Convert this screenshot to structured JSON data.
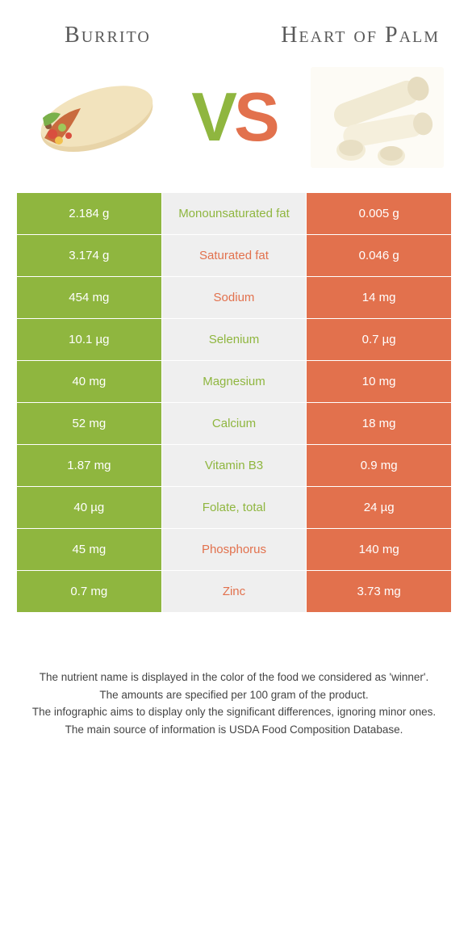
{
  "header": {
    "left_title": "Burrito",
    "right_title": "Heart of Palm",
    "vs_v": "V",
    "vs_s": "S"
  },
  "colors": {
    "green": "#8fb63f",
    "orange": "#e2714d",
    "mid_bg": "#efefef",
    "page_bg": "#ffffff",
    "text": "#333333"
  },
  "table": {
    "rows": [
      {
        "left": "2.184 g",
        "label": "Monounsaturated fat",
        "right": "0.005 g",
        "winner": "green"
      },
      {
        "left": "3.174 g",
        "label": "Saturated fat",
        "right": "0.046 g",
        "winner": "orange"
      },
      {
        "left": "454 mg",
        "label": "Sodium",
        "right": "14 mg",
        "winner": "orange"
      },
      {
        "left": "10.1 µg",
        "label": "Selenium",
        "right": "0.7 µg",
        "winner": "green"
      },
      {
        "left": "40 mg",
        "label": "Magnesium",
        "right": "10 mg",
        "winner": "green"
      },
      {
        "left": "52 mg",
        "label": "Calcium",
        "right": "18 mg",
        "winner": "green"
      },
      {
        "left": "1.87 mg",
        "label": "Vitamin B3",
        "right": "0.9 mg",
        "winner": "green"
      },
      {
        "left": "40 µg",
        "label": "Folate, total",
        "right": "24 µg",
        "winner": "green"
      },
      {
        "left": "45 mg",
        "label": "Phosphorus",
        "right": "140 mg",
        "winner": "orange"
      },
      {
        "left": "0.7 mg",
        "label": "Zinc",
        "right": "3.73 mg",
        "winner": "orange"
      }
    ]
  },
  "footnotes": [
    "The nutrient name is displayed in the color of the food we considered as 'winner'.",
    "The amounts are specified per 100 gram of the product.",
    "The infographic aims to display only the significant differences, ignoring minor ones.",
    "The main source of information is USDA Food Composition Database."
  ]
}
